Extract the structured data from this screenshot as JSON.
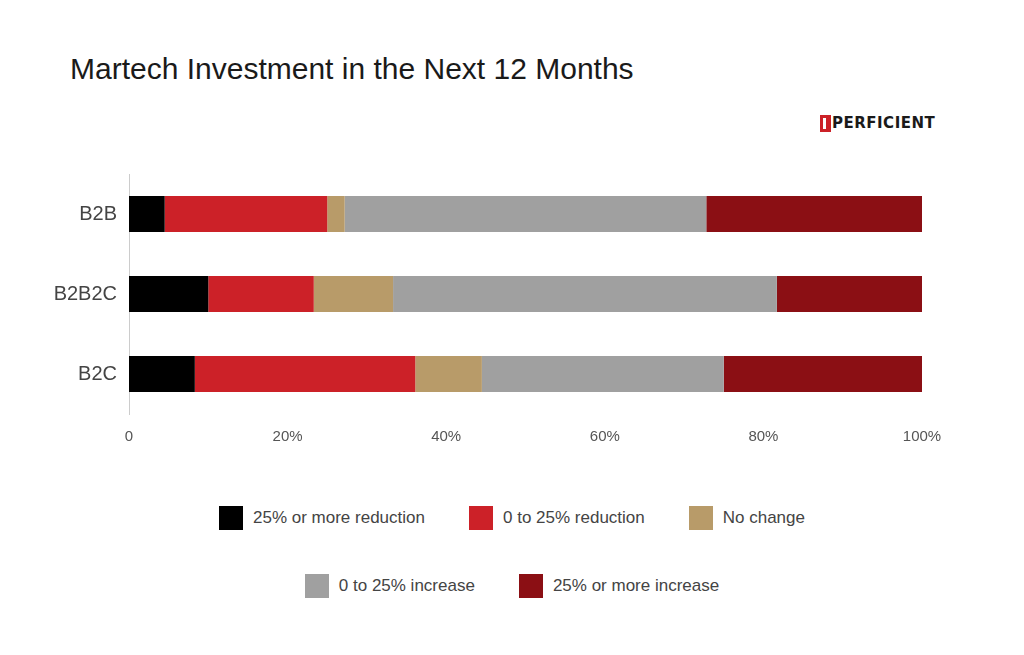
{
  "chart_data": {
    "type": "bar",
    "orientation": "horizontal",
    "stacked": true,
    "title": "Martech Investment in the Next 12 Months",
    "annotations": [
      "PERFICIENT"
    ],
    "categories": [
      "B2B",
      "B2B2C",
      "B2C"
    ],
    "series": [
      {
        "name": "25% or more reduction",
        "color": "#000000",
        "values": [
          4.5,
          10.0,
          8.3
        ]
      },
      {
        "name": "0 to 25% reduction",
        "color": "#cc2128",
        "values": [
          20.5,
          13.3,
          27.8
        ]
      },
      {
        "name": "No change",
        "color": "#b89b69",
        "values": [
          2.2,
          10.0,
          8.4
        ]
      },
      {
        "name": "0 to 25% increase",
        "color": "#a0a0a0",
        "values": [
          45.6,
          48.4,
          30.5
        ]
      },
      {
        "name": "25% or more increase",
        "color": "#8b0f14",
        "values": [
          27.2,
          18.3,
          25.0
        ]
      }
    ],
    "xlim": [
      0,
      100
    ],
    "xticks": [
      0,
      {
        "value": 20,
        "label": "20%"
      },
      {
        "value": 40,
        "label": "40%"
      },
      {
        "value": 60,
        "label": "60%"
      },
      {
        "value": 80,
        "label": "80%"
      },
      {
        "value": 100,
        "label": "100%"
      }
    ],
    "grid": false,
    "legend": "bottom"
  }
}
